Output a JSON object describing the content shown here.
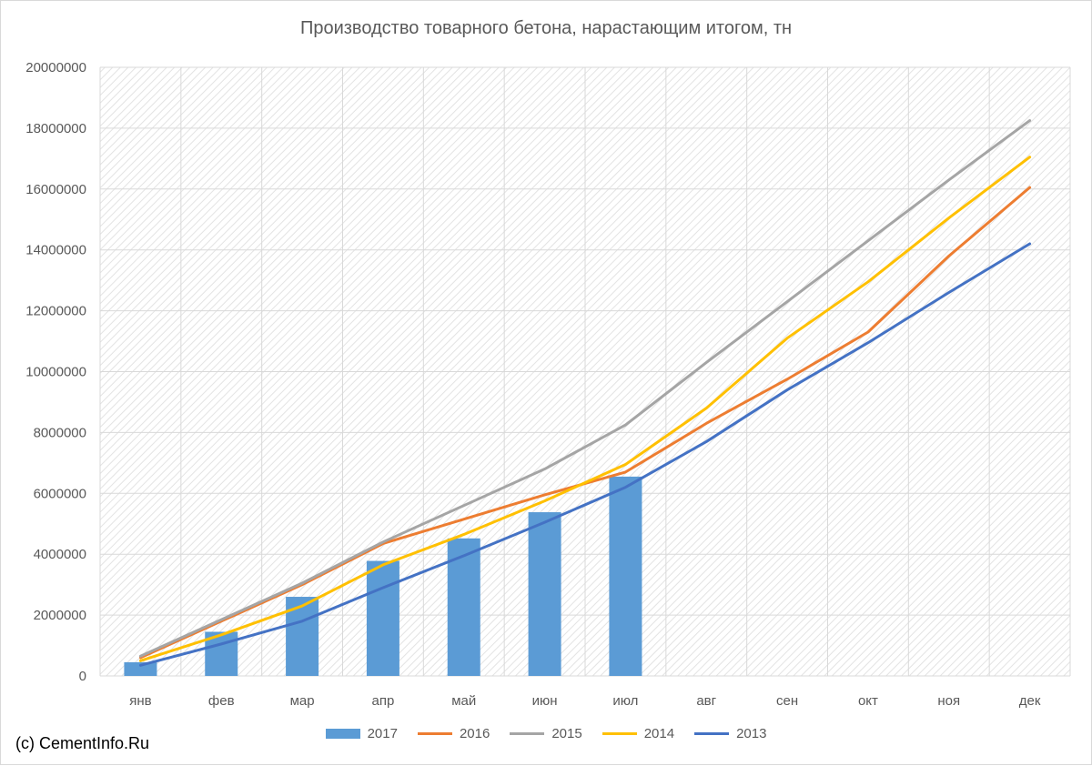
{
  "chart_data": {
    "type": "bar+line",
    "title": "Производство товарного бетона, нарастающим итогом, тн",
    "categories": [
      "янв",
      "фев",
      "мар",
      "апр",
      "май",
      "июн",
      "июл",
      "авг",
      "сен",
      "окт",
      "ноя",
      "дек"
    ],
    "ylim": [
      0,
      20000000
    ],
    "yticks": [
      0,
      2000000,
      4000000,
      6000000,
      8000000,
      10000000,
      12000000,
      14000000,
      16000000,
      18000000,
      20000000
    ],
    "ytick_labels": [
      "0",
      "2000000",
      "4000000",
      "6000000",
      "8000000",
      "10000000",
      "12000000",
      "14000000",
      "16000000",
      "18000000",
      "20000000"
    ],
    "grid": true,
    "legend_position": "bottom",
    "series": [
      {
        "name": "2017",
        "kind": "bar",
        "color": "#5b9bd5",
        "values": [
          450000,
          1450000,
          2600000,
          3780000,
          4520000,
          5380000,
          6550000,
          null,
          null,
          null,
          null,
          null
        ]
      },
      {
        "name": "2016",
        "kind": "line",
        "color": "#ed7d31",
        "values": [
          600000,
          1800000,
          3000000,
          4350000,
          5150000,
          5950000,
          6700000,
          8300000,
          9750000,
          11300000,
          13800000,
          16050000
        ]
      },
      {
        "name": "2015",
        "kind": "line",
        "color": "#a5a5a5",
        "values": [
          650000,
          1850000,
          3050000,
          4400000,
          5600000,
          6800000,
          8250000,
          10300000,
          12300000,
          14300000,
          16300000,
          18250000
        ]
      },
      {
        "name": "2014",
        "kind": "line",
        "color": "#ffc000",
        "values": [
          500000,
          1350000,
          2300000,
          3650000,
          4650000,
          5750000,
          6950000,
          8800000,
          11100000,
          12950000,
          15050000,
          17050000
        ]
      },
      {
        "name": "2013",
        "kind": "line",
        "color": "#4472c4",
        "values": [
          350000,
          1050000,
          1800000,
          2900000,
          3950000,
          5050000,
          6200000,
          7700000,
          9400000,
          10950000,
          12600000,
          14200000
        ]
      }
    ]
  },
  "source_note": "(c) CementInfo.Ru"
}
